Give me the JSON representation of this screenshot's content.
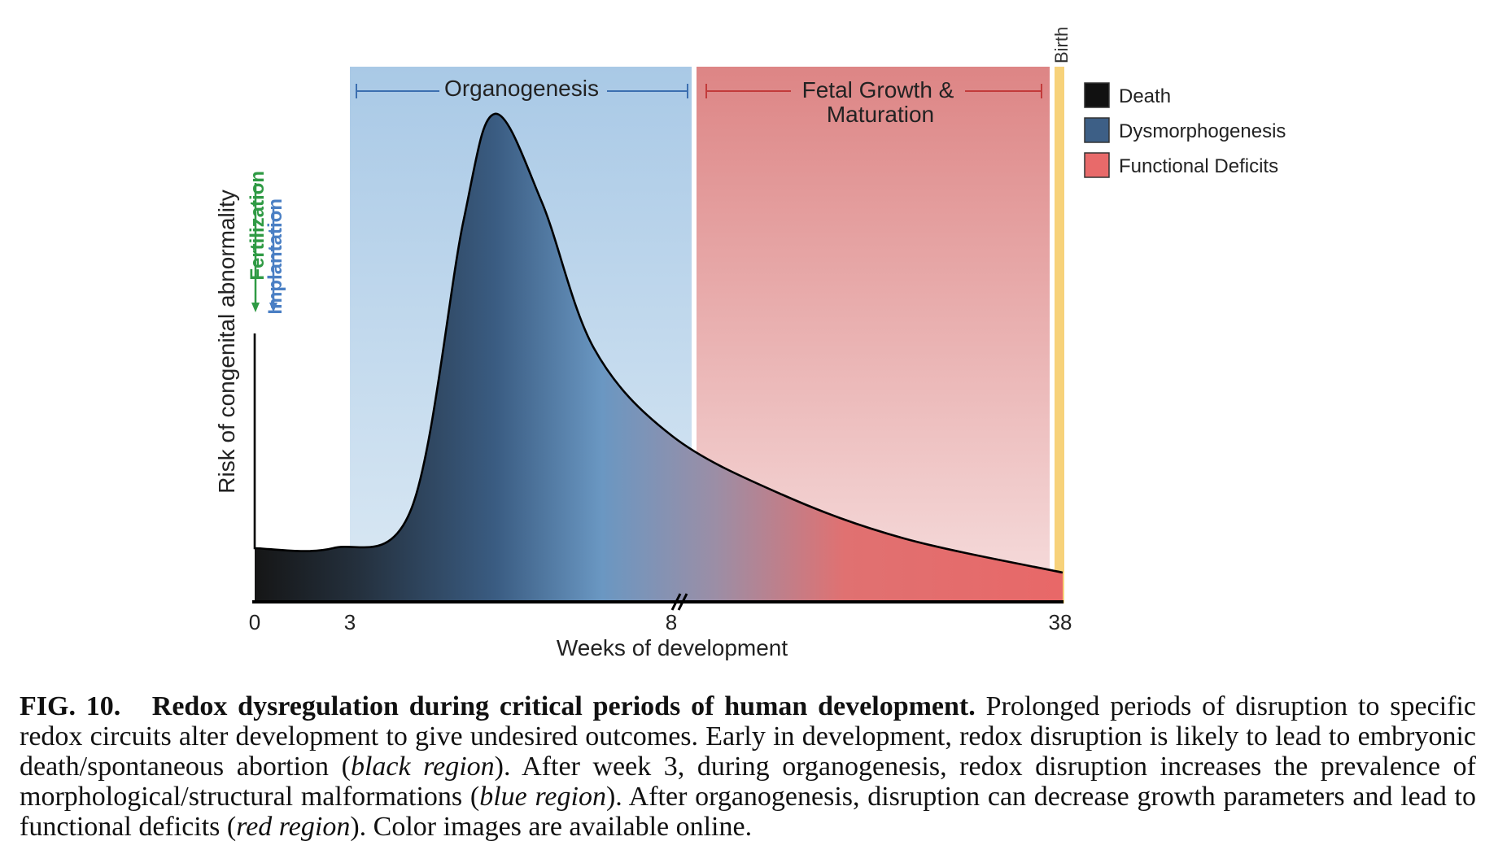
{
  "figure": {
    "y_axis_label": "Risk of congenital abnormality",
    "x_axis_label": "Weeks of development",
    "periods": {
      "organogenesis": "Organogenesis",
      "fetal_line1": "Fetal Growth &",
      "fetal_line2": "Maturation",
      "birth": "Birth"
    },
    "events": {
      "fertilization": "Fertilization",
      "implantation": "Implantation"
    },
    "legend": [
      {
        "label": "Death",
        "color": "#111111"
      },
      {
        "label": "Dysmorphogenesis",
        "color": "#3d5f86"
      },
      {
        "label": "Functional Deficits",
        "color": "#e86a6a"
      }
    ],
    "colors": {
      "organogenesis_band": "#b9d4ea",
      "fetal_band": "#e58585",
      "birth_band": "#f7d27a",
      "organogenesis_bracket": "#3c6fb0",
      "fetal_bracket": "#c23b3b",
      "fertilization_arrow": "#2f9a44",
      "implantation_arrow": "#4a7fc4"
    }
  },
  "chart_data": {
    "type": "area",
    "xlabel": "Weeks of development",
    "ylabel": "Risk of congenital abnormality",
    "x_ticks": [
      "0",
      "3",
      "8",
      "38"
    ],
    "axis_break_after": "8",
    "curve": [
      {
        "week": 0,
        "risk": 0.55
      },
      {
        "week": 0,
        "risk": 0.11
      },
      {
        "week": 1.5,
        "risk": 0.11
      },
      {
        "week": 3,
        "risk": 0.19
      },
      {
        "week": 4,
        "risk": 0.78
      },
      {
        "week": 4.6,
        "risk": 1.0
      },
      {
        "week": 5.5,
        "risk": 0.82
      },
      {
        "week": 6.5,
        "risk": 0.52
      },
      {
        "week": 8,
        "risk": 0.34
      },
      {
        "week": 15,
        "risk": 0.22
      },
      {
        "week": 25,
        "risk": 0.13
      },
      {
        "week": 38,
        "risk": 0.06
      }
    ],
    "regions": [
      {
        "name": "Organogenesis",
        "start": "3",
        "end": "8"
      },
      {
        "name": "Fetal Growth & Maturation",
        "start": "8",
        "end": "38"
      }
    ],
    "legend": [
      "Death",
      "Dysmorphogenesis",
      "Functional Deficits"
    ]
  },
  "caption": {
    "label": "FIG. 10.",
    "title": "Redox dysregulation during critical periods of human development.",
    "body_1": "Prolonged periods of disruption to specific redox circuits alter development to give undesired outcomes. Early in development, redox disruption is likely to lead to embryonic death/spontaneous abortion (",
    "black_region": "black region",
    "body_2": "). After week 3, during organogenesis, redox disruption increases the prevalence of morphological/structural malformations (",
    "blue_region": "blue region",
    "body_3": "). After organogenesis, disruption can decrease growth parameters and lead to functional deficits (",
    "red_region": "red region",
    "body_4": "). Color images are available online."
  }
}
